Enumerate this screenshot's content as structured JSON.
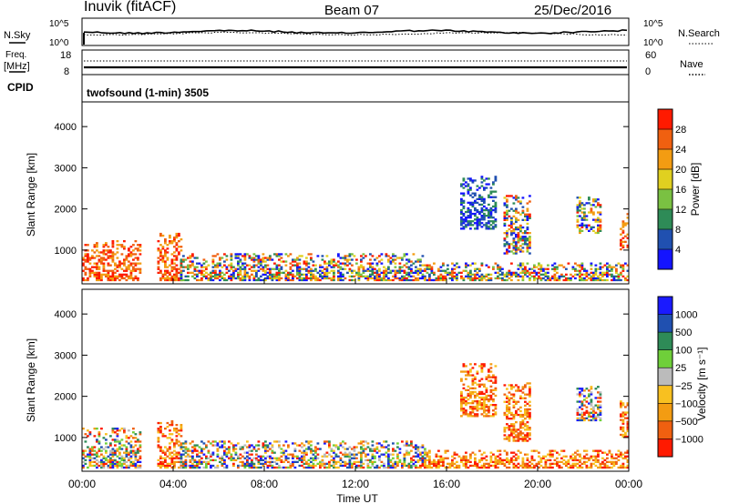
{
  "header": {
    "station": "Inuvik (fitACF)",
    "beam": "Beam 07",
    "date": "25/Dec/2016"
  },
  "noise_panel": {
    "left_label_top": "N.Sky",
    "left_ticks": [
      "10^5",
      "10^0"
    ],
    "right_ticks": [
      "10^5",
      "10^0"
    ],
    "right_label": "N.Search"
  },
  "freq_panel": {
    "left_label_1": "Freq.",
    "left_label_2": "[MHz]",
    "left_ticks": [
      "18",
      "8"
    ],
    "right_ticks": [
      "60",
      "0"
    ],
    "right_label": "Nave",
    "cpid_label": "CPID",
    "cpid_value": "twofsound (1-min) 3505"
  },
  "chart_data": [
    {
      "type": "heatmap",
      "name": "power",
      "ylabel": "Slant Range [km]",
      "ylim": [
        180,
        4600
      ],
      "yticks": [
        "1000",
        "2000",
        "3000",
        "4000"
      ],
      "xticks": [
        "00:00",
        "04:00",
        "08:00",
        "12:00",
        "16:00",
        "20:00",
        "00:00"
      ],
      "colorbar_label": "Power [dB]",
      "colorbar_ticks": [
        "4",
        "8",
        "12",
        "16",
        "20",
        "24",
        "28"
      ],
      "colorbar_colors": [
        "#1414ff",
        "#2050b0",
        "#2e8b57",
        "#7ac142",
        "#e0d020",
        "#f39c12",
        "#f06010",
        "#ff1a00"
      ],
      "scatter_regions": [
        {
          "t0": 0.0,
          "t1": 2.6,
          "r0": 250,
          "r1": 1200,
          "level": "high"
        },
        {
          "t0": 3.3,
          "t1": 4.3,
          "r0": 250,
          "r1": 1400,
          "level": "high"
        },
        {
          "t0": 4.3,
          "t1": 15.0,
          "r0": 250,
          "r1": 900,
          "level": "mixed"
        },
        {
          "t0": 15.0,
          "t1": 24.0,
          "r0": 250,
          "r1": 700,
          "level": "mixed"
        },
        {
          "t0": 16.6,
          "t1": 18.2,
          "r0": 1500,
          "r1": 2800,
          "level": "low"
        },
        {
          "t0": 18.5,
          "t1": 19.7,
          "r0": 900,
          "r1": 2300,
          "level": "mixed"
        },
        {
          "t0": 21.7,
          "t1": 22.8,
          "r0": 1400,
          "r1": 2300,
          "level": "mixed"
        },
        {
          "t0": 23.6,
          "t1": 24.0,
          "r0": 1000,
          "r1": 1900,
          "level": "high"
        }
      ]
    },
    {
      "type": "heatmap",
      "name": "velocity",
      "ylabel": "Slant Range [km]",
      "ylim": [
        180,
        4600
      ],
      "yticks": [
        "1000",
        "2000",
        "3000",
        "4000"
      ],
      "xticks": [
        "00:00",
        "04:00",
        "08:00",
        "12:00",
        "16:00",
        "20:00",
        "00:00"
      ],
      "xlabel": "Time UT",
      "colorbar_label": "Velocity [m s⁻¹]",
      "colorbar_ticks": [
        "1000",
        "500",
        "100",
        "25",
        "−25",
        "−100",
        "−500",
        "−1000"
      ],
      "colorbar_colors": [
        "#1a1aff",
        "#2050b0",
        "#2e8b57",
        "#6fcf3a",
        "#bbbbbb",
        "#f8c020",
        "#f39c12",
        "#f06010",
        "#ff1a00"
      ],
      "scatter_regions": [
        {
          "t0": 0.0,
          "t1": 2.6,
          "r0": 250,
          "r1": 1200,
          "level": "mixed"
        },
        {
          "t0": 3.3,
          "t1": 4.3,
          "r0": 250,
          "r1": 1400,
          "level": "neg"
        },
        {
          "t0": 4.3,
          "t1": 15.0,
          "r0": 250,
          "r1": 900,
          "level": "mixed"
        },
        {
          "t0": 15.0,
          "t1": 24.0,
          "r0": 250,
          "r1": 700,
          "level": "neg"
        },
        {
          "t0": 16.6,
          "t1": 18.2,
          "r0": 1500,
          "r1": 2800,
          "level": "neg"
        },
        {
          "t0": 18.5,
          "t1": 19.7,
          "r0": 900,
          "r1": 2300,
          "level": "neg"
        },
        {
          "t0": 21.7,
          "t1": 22.8,
          "r0": 1400,
          "r1": 2300,
          "level": "mixed"
        },
        {
          "t0": 23.6,
          "t1": 24.0,
          "r0": 1000,
          "r1": 1900,
          "level": "neg"
        }
      ]
    }
  ]
}
